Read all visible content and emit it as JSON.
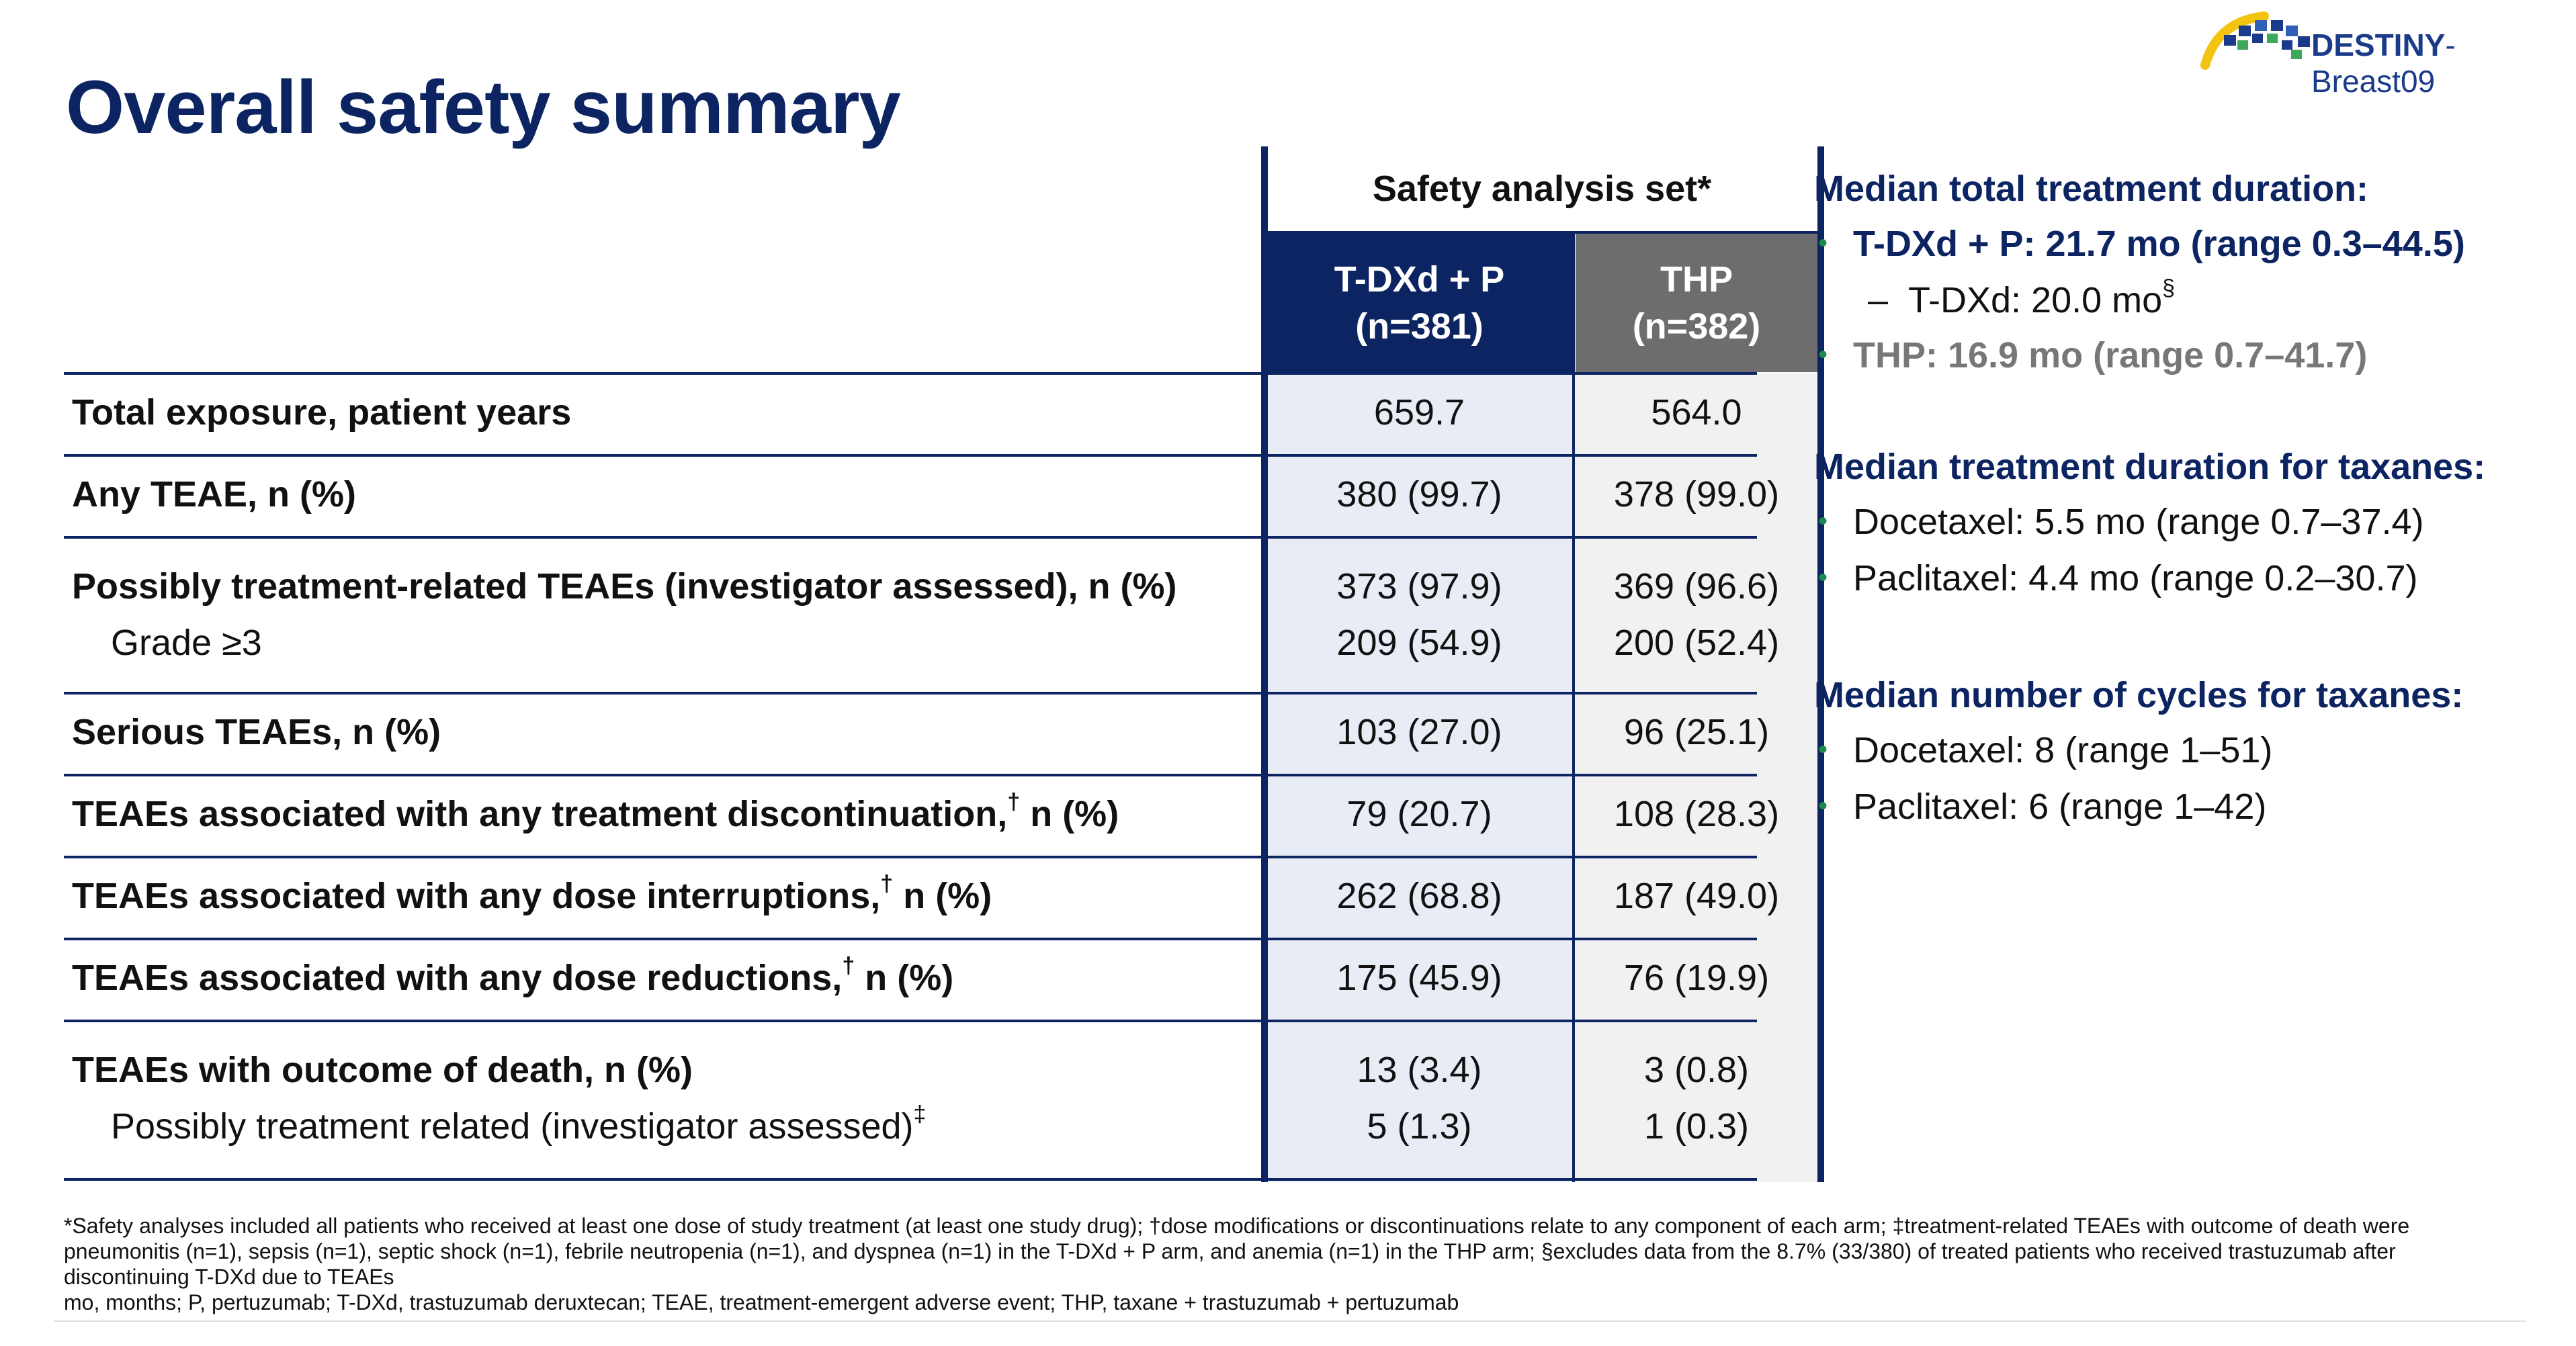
{
  "title": "Overall safety summary",
  "logo": {
    "brand": "DESTINY",
    "suffix": "-Breast09"
  },
  "table": {
    "set_label": "Safety analysis set*",
    "arm1_header": {
      "line1": "T-DXd + P",
      "line2": "(n=381)"
    },
    "arm2_header": {
      "line1": "THP",
      "line2": "(n=382)"
    },
    "rows": [
      {
        "label": "Total exposure, patient years",
        "t": "659.7",
        "h": "564.0"
      },
      {
        "label": "Any TEAE, n (%)",
        "t": "380 (99.7)",
        "h": "378 (99.0)"
      },
      {
        "label": "Possibly treatment-related TEAEs (investigator assessed), n (%)",
        "t": "373 (97.9)",
        "h": "369 (96.6)",
        "sub": "Grade ≥3",
        "sub_t": "209 (54.9)",
        "sub_h": "200 (52.4)"
      },
      {
        "label": "Serious TEAEs, n (%)",
        "t": "103 (27.0)",
        "h": "96 (25.1)"
      },
      {
        "label": "TEAEs associated with any treatment discontinuation,",
        "sup": "†",
        "label_tail": " n (%)",
        "t": "79 (20.7)",
        "h": "108 (28.3)"
      },
      {
        "label": "TEAEs associated with any dose interruptions,",
        "sup": "†",
        "label_tail": " n (%)",
        "t": "262 (68.8)",
        "h": "187 (49.0)"
      },
      {
        "label": "TEAEs associated with any dose reductions,",
        "sup": "†",
        "label_tail": " n (%)",
        "t": "175 (45.9)",
        "h": "76 (19.9)"
      },
      {
        "label": "TEAEs with outcome of death, n (%)",
        "t": "13 (3.4)",
        "h": "3 (0.8)",
        "sub": "Possibly treatment related (investigator assessed)",
        "sub_sup": "‡",
        "sub_t": "5 (1.3)",
        "sub_h": "1 (0.3)"
      }
    ]
  },
  "panel": {
    "h1": "Median total treatment duration:",
    "b1": "T-DXd + P: 21.7 mo (range 0.3–44.5)",
    "b1_sub": "T-DXd: 20.0 mo",
    "b1_sub_sup": "§",
    "b2": "THP: 16.9 mo (range 0.7–41.7)",
    "h2": "Median treatment duration for taxanes:",
    "b3": "Docetaxel: 5.5 mo (range 0.7–37.4)",
    "b4": "Paclitaxel: 4.4 mo (range 0.2–30.7)",
    "h3": "Median number of cycles for taxanes:",
    "b5": "Docetaxel: 8 (range 1–51)",
    "b6": "Paclitaxel: 6 (range 1–42)"
  },
  "footnote": {
    "line1": "*Safety analyses included all patients who received at least one dose of study treatment (at least one study drug); †dose modifications or discontinuations relate to any component of each arm; ‡treatment-related TEAEs with outcome of death were pneumonitis (n=1), sepsis (n=1), septic shock (n=1), febrile neutropenia (n=1), and dyspnea (n=1) in the T-DXd + P arm, and anemia (n=1) in the THP arm; §excludes data from the 8.7% (33/380) of treated patients who received trastuzumab after discontinuing T-DXd due to TEAEs",
    "line2": "mo, months; P, pertuzumab; T-DXd, trastuzumab deruxtecan; TEAE, treatment-emergent adverse event; THP, taxane + trastuzumab + pertuzumab"
  },
  "colors": {
    "navy": "#0c2461",
    "grey_header": "#6d6d6d",
    "bullet_green": "#1b8a4a"
  }
}
